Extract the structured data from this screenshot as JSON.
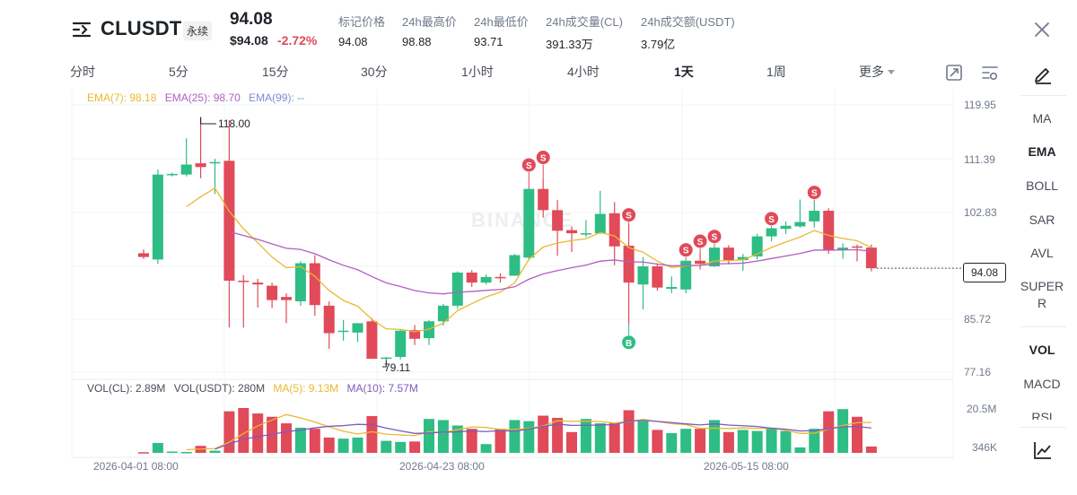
{
  "header": {
    "symbol": "CLUSDT",
    "contract_type": "永续",
    "last_price": "94.08",
    "usd_price": "$94.08",
    "change_pct": "-2.72%",
    "stats": [
      {
        "label": "标记价格",
        "value": "94.08"
      },
      {
        "label": "24h最高价",
        "value": "98.88"
      },
      {
        "label": "24h最低价",
        "value": "93.71"
      },
      {
        "label": "24h成交量(CL)",
        "value": "391.33万"
      },
      {
        "label": "24h成交额(USDT)",
        "value": "3.79亿"
      }
    ]
  },
  "tabs": {
    "items": [
      "分时",
      "5分",
      "15分",
      "30分",
      "1小时",
      "4小时",
      "1天",
      "1周",
      "更多"
    ],
    "active": "1天"
  },
  "side_panel": {
    "main_indicators": [
      "MA",
      "EMA",
      "BOLL",
      "SAR",
      "AVL",
      "SUPER",
      "R"
    ],
    "sub_indicators": [
      "VOL",
      "MACD",
      "RSI"
    ]
  },
  "legend": {
    "ema7": "EMA(7): 98.18",
    "ema25": "EMA(25): 98.70",
    "ema99": "EMA(99): --",
    "vol_cl": "VOL(CL): 2.89M",
    "vol_usdt": "VOL(USDT): 280M",
    "ma5": "MA(5): 9.13M",
    "ma10": "MA(10): 7.57M"
  },
  "axis": {
    "price_ticks": [
      "119.95",
      "111.39",
      "102.83",
      "94.08",
      "85.72",
      "77.16"
    ],
    "volume_ticks": [
      "20.5M",
      "346K"
    ],
    "date_ticks": [
      "2026-04-01 08:00",
      "2026-04-23 08:00",
      "2026-05-15 08:00"
    ],
    "last_price_tag": "94.08",
    "high_label": "118.00",
    "low_label": "79.11"
  },
  "watermark": "BINANCE",
  "colors": {
    "up": "#2ebd85",
    "down": "#e04a59",
    "ema7": "#e8b931",
    "ema25": "#b15fc0",
    "ema99": "#7b8cd6",
    "ma5": "#e8b931",
    "ma10": "#7a5cbe"
  },
  "chart_data": {
    "type": "candlestick",
    "price_range": [
      77.16,
      119.95
    ],
    "candles": [
      {
        "o": 96.2,
        "h": 96.8,
        "l": 95.3,
        "c": 95.6,
        "v": 0.3
      },
      {
        "o": 95.2,
        "h": 109.6,
        "l": 94.5,
        "c": 108.8,
        "v": 4.5
      },
      {
        "o": 108.8,
        "h": 109.1,
        "l": 108.5,
        "c": 108.9,
        "v": 0.6
      },
      {
        "o": 108.8,
        "h": 114.6,
        "l": 108.5,
        "c": 110.4,
        "v": 0.4
      },
      {
        "o": 110.6,
        "h": 118.0,
        "l": 108.2,
        "c": 110.0,
        "v": 3.2
      },
      {
        "o": 110.8,
        "h": 111.3,
        "l": 105.7,
        "c": 110.8,
        "v": 1.0
      },
      {
        "o": 111.0,
        "h": 117.5,
        "l": 84.3,
        "c": 91.8,
        "v": 19.0
      },
      {
        "o": 91.8,
        "h": 92.7,
        "l": 84.3,
        "c": 91.7,
        "v": 20.5
      },
      {
        "o": 91.5,
        "h": 92.1,
        "l": 87.5,
        "c": 91.2,
        "v": 18.0
      },
      {
        "o": 91.0,
        "h": 91.5,
        "l": 87.4,
        "c": 88.7,
        "v": 16.5
      },
      {
        "o": 89.2,
        "h": 89.8,
        "l": 85.0,
        "c": 88.7,
        "v": 13.5
      },
      {
        "o": 88.5,
        "h": 94.9,
        "l": 87.8,
        "c": 94.6,
        "v": 11.5
      },
      {
        "o": 94.6,
        "h": 95.9,
        "l": 86.2,
        "c": 87.9,
        "v": 11.0
      },
      {
        "o": 87.8,
        "h": 88.5,
        "l": 80.9,
        "c": 83.4,
        "v": 7.0
      },
      {
        "o": 83.6,
        "h": 85.5,
        "l": 82.2,
        "c": 83.8,
        "v": 6.5
      },
      {
        "o": 83.5,
        "h": 85.0,
        "l": 82.0,
        "c": 85.0,
        "v": 7.0
      },
      {
        "o": 85.3,
        "h": 85.8,
        "l": 79.3,
        "c": 79.3,
        "v": 16.8
      },
      {
        "o": 79.3,
        "h": 79.6,
        "l": 79.11,
        "c": 79.5,
        "v": 5.5
      },
      {
        "o": 79.6,
        "h": 83.9,
        "l": 79.2,
        "c": 83.8,
        "v": 5.0
      },
      {
        "o": 83.9,
        "h": 84.7,
        "l": 81.5,
        "c": 82.5,
        "v": 5.2
      },
      {
        "o": 82.6,
        "h": 85.5,
        "l": 81.5,
        "c": 85.3,
        "v": 15.5
      },
      {
        "o": 85.3,
        "h": 88.1,
        "l": 84.6,
        "c": 87.8,
        "v": 15.0
      },
      {
        "o": 87.8,
        "h": 93.3,
        "l": 87.3,
        "c": 93.1,
        "v": 12.5
      },
      {
        "o": 93.1,
        "h": 93.5,
        "l": 90.8,
        "c": 91.5,
        "v": 11.0
      },
      {
        "o": 91.5,
        "h": 92.8,
        "l": 91.2,
        "c": 92.4,
        "v": 4.0
      },
      {
        "o": 92.4,
        "h": 93.0,
        "l": 91.5,
        "c": 92.3,
        "v": 11.0
      },
      {
        "o": 92.6,
        "h": 96.1,
        "l": 92.6,
        "c": 95.9,
        "v": 15.0
      },
      {
        "o": 95.5,
        "h": 106.6,
        "l": 95.3,
        "c": 106.5,
        "v": 14.5
      },
      {
        "o": 106.5,
        "h": 108.1,
        "l": 101.9,
        "c": 103.1,
        "v": 17.0
      },
      {
        "o": 103.1,
        "h": 104.7,
        "l": 95.8,
        "c": 99.8,
        "v": 16.0
      },
      {
        "o": 99.9,
        "h": 100.5,
        "l": 96.4,
        "c": 99.4,
        "v": 9.5
      },
      {
        "o": 99.4,
        "h": 101.5,
        "l": 98.8,
        "c": 99.4,
        "v": 15.5
      },
      {
        "o": 99.4,
        "h": 106.2,
        "l": 99.3,
        "c": 102.5,
        "v": 13.5
      },
      {
        "o": 102.6,
        "h": 104.4,
        "l": 94.3,
        "c": 97.3,
        "v": 13.5
      },
      {
        "o": 97.4,
        "h": 100.9,
        "l": 84.8,
        "c": 91.5,
        "v": 19.5
      },
      {
        "o": 91.2,
        "h": 95.6,
        "l": 87.2,
        "c": 94.1,
        "v": 14.5
      },
      {
        "o": 94.1,
        "h": 94.6,
        "l": 90.2,
        "c": 90.7,
        "v": 10.5
      },
      {
        "o": 90.5,
        "h": 92.5,
        "l": 89.8,
        "c": 90.8,
        "v": 9.0
      },
      {
        "o": 90.4,
        "h": 95.3,
        "l": 89.8,
        "c": 95.0,
        "v": 11.0
      },
      {
        "o": 95.0,
        "h": 96.4,
        "l": 93.6,
        "c": 94.5,
        "v": 11.0
      },
      {
        "o": 94.1,
        "h": 97.3,
        "l": 94.0,
        "c": 97.1,
        "v": 15.0
      },
      {
        "o": 97.1,
        "h": 97.5,
        "l": 94.4,
        "c": 95.1,
        "v": 9.5
      },
      {
        "o": 95.1,
        "h": 96.1,
        "l": 93.4,
        "c": 95.6,
        "v": 10.5
      },
      {
        "o": 95.7,
        "h": 99.3,
        "l": 95.2,
        "c": 98.9,
        "v": 10.0
      },
      {
        "o": 98.9,
        "h": 100.3,
        "l": 98.1,
        "c": 100.2,
        "v": 11.5
      },
      {
        "o": 100.1,
        "h": 101.3,
        "l": 99.3,
        "c": 100.6,
        "v": 10.0
      },
      {
        "o": 100.5,
        "h": 104.8,
        "l": 100.3,
        "c": 101.2,
        "v": 2.5
      },
      {
        "o": 101.3,
        "h": 104.5,
        "l": 100.3,
        "c": 103.0,
        "v": 11.0
      },
      {
        "o": 103.0,
        "h": 103.4,
        "l": 96.1,
        "c": 96.7,
        "v": 19.0
      },
      {
        "o": 96.7,
        "h": 97.8,
        "l": 95.3,
        "c": 97.1,
        "v": 20.0
      },
      {
        "o": 97.3,
        "h": 97.6,
        "l": 94.9,
        "c": 97.1,
        "v": 16.5
      },
      {
        "o": 97.1,
        "h": 97.6,
        "l": 93.3,
        "c": 93.8,
        "v": 2.9
      }
    ]
  }
}
